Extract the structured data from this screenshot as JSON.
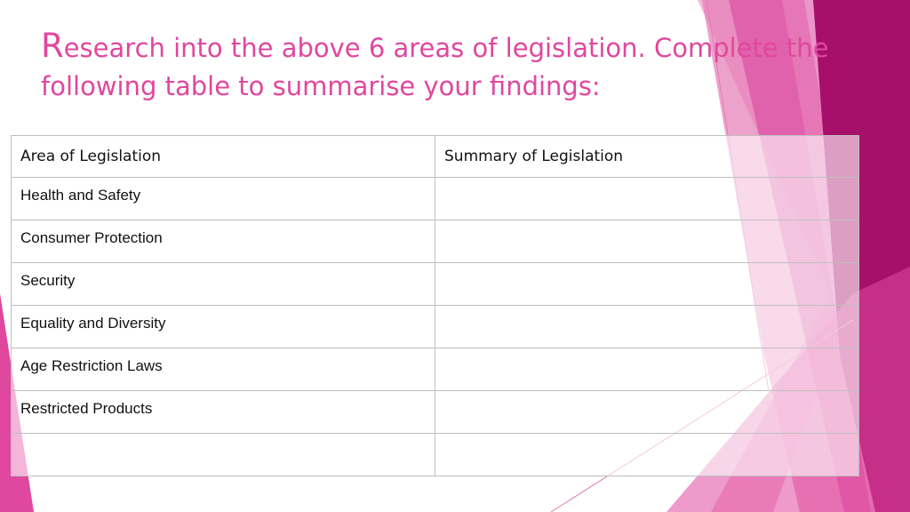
{
  "header": {
    "title": "Research into the above 6 areas of legislation. Complete the following table to summarise your findings:"
  },
  "table": {
    "columns": [
      "Area of Legislation",
      "Summary of Legislation"
    ],
    "rows": [
      "Health and Safety",
      "Consumer Protection",
      "Security",
      "Equality and Diversity",
      "Age Restriction Laws",
      "Restricted Products"
    ]
  }
}
